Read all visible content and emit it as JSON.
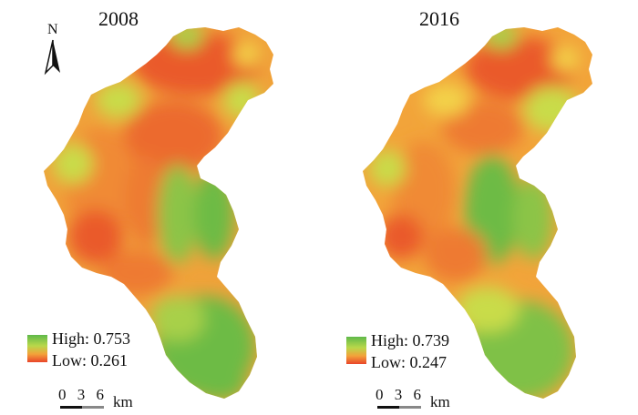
{
  "maps": [
    {
      "year": "2008",
      "legend": {
        "high": "High: 0.753",
        "low": "Low: 0.261",
        "high_color": "#5fb94a",
        "low_color": "#e9452a"
      },
      "scale": {
        "ticks": "0 3 6",
        "unit": "km"
      },
      "north": "N"
    },
    {
      "year": "2016",
      "legend": {
        "high": "High: 0.739",
        "low": "Low: 0.247",
        "high_color": "#5fb94a",
        "low_color": "#e9452a"
      },
      "scale": {
        "ticks": "0 3 6",
        "unit": "km"
      }
    }
  ],
  "colors": {
    "green": "#6dbb45",
    "yellowgreen": "#c2d94a",
    "yellow": "#f3d24a",
    "orange": "#f2a03a",
    "red": "#e8522c"
  }
}
